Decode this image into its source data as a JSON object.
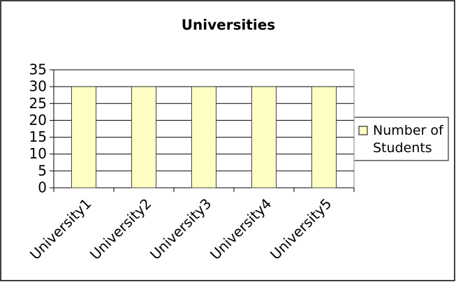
{
  "chart_data": {
    "type": "bar",
    "title": "Universities",
    "categories": [
      "University1",
      "University2",
      "University3",
      "University4",
      "University5"
    ],
    "series": [
      {
        "name": "Number of Students",
        "color": "#ffffc4",
        "values": [
          30,
          30,
          30,
          30,
          30
        ]
      }
    ],
    "ylim": [
      0,
      35
    ],
    "yticks": [
      0,
      5,
      10,
      15,
      20,
      25,
      30,
      35
    ],
    "grid": true,
    "legend": "right"
  }
}
